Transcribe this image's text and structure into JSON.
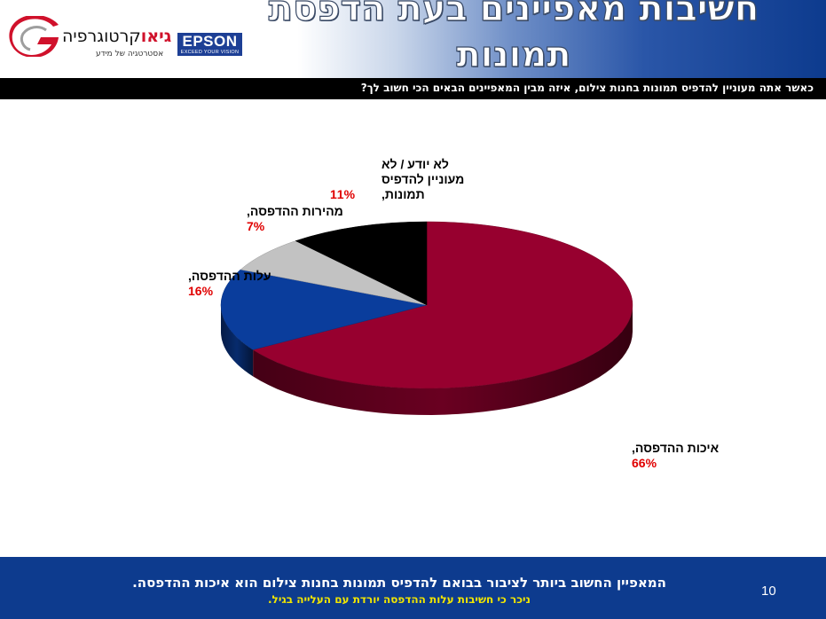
{
  "header": {
    "title": "חשיבות מאפיינים בעת הדפסת תמונות",
    "geo_logo": {
      "name_bold": "גיאו",
      "name_rest": "קרטוגרפיה",
      "tagline": "אסטרטגיה של מידע",
      "icon": "geo-swoosh-logo"
    },
    "epson_logo": {
      "word": "EPSON",
      "tagline": "EXCEED YOUR VISION"
    }
  },
  "question": "כאשר אתה מעוניין להדפיס תמונות בחנות צילום, איזה מבין המאפיינים הבאים הכי חשוב לך?",
  "chart_data": {
    "type": "pie",
    "three_d": true,
    "title": "",
    "slices": [
      {
        "label_lines": [
          "איכות ההדפסה,"
        ],
        "value": 66,
        "value_label": "66%",
        "color": "#97002f"
      },
      {
        "label_lines": [
          "עלות ההדפסה,"
        ],
        "value": 16,
        "value_label": "16%",
        "color": "#0a3d9c"
      },
      {
        "label_lines": [
          "מהירות ההדפסה,"
        ],
        "value": 7,
        "value_label": "7%",
        "color": "#c2c2c2"
      },
      {
        "label_lines": [
          "לא יודע / לא",
          "מעוניין להדפיס",
          "תמונות,"
        ],
        "value": 11,
        "value_label": "11%",
        "color": "#000000"
      }
    ]
  },
  "colors": {
    "header_blue": "#0d3b8e",
    "value_red": "#e00000",
    "footer_blue": "#0d3b8e",
    "footer_highlight": "#f2e600"
  },
  "footer": {
    "main": "המאפיין החשוב ביותר לציבור בבואם להדפיס תמונות בחנות צילום הוא איכות ההדפסה.",
    "sub": "ניכר כי חשיבות עלות ההדפסה יורדת עם העלייה בגיל.",
    "page_number": "10"
  }
}
